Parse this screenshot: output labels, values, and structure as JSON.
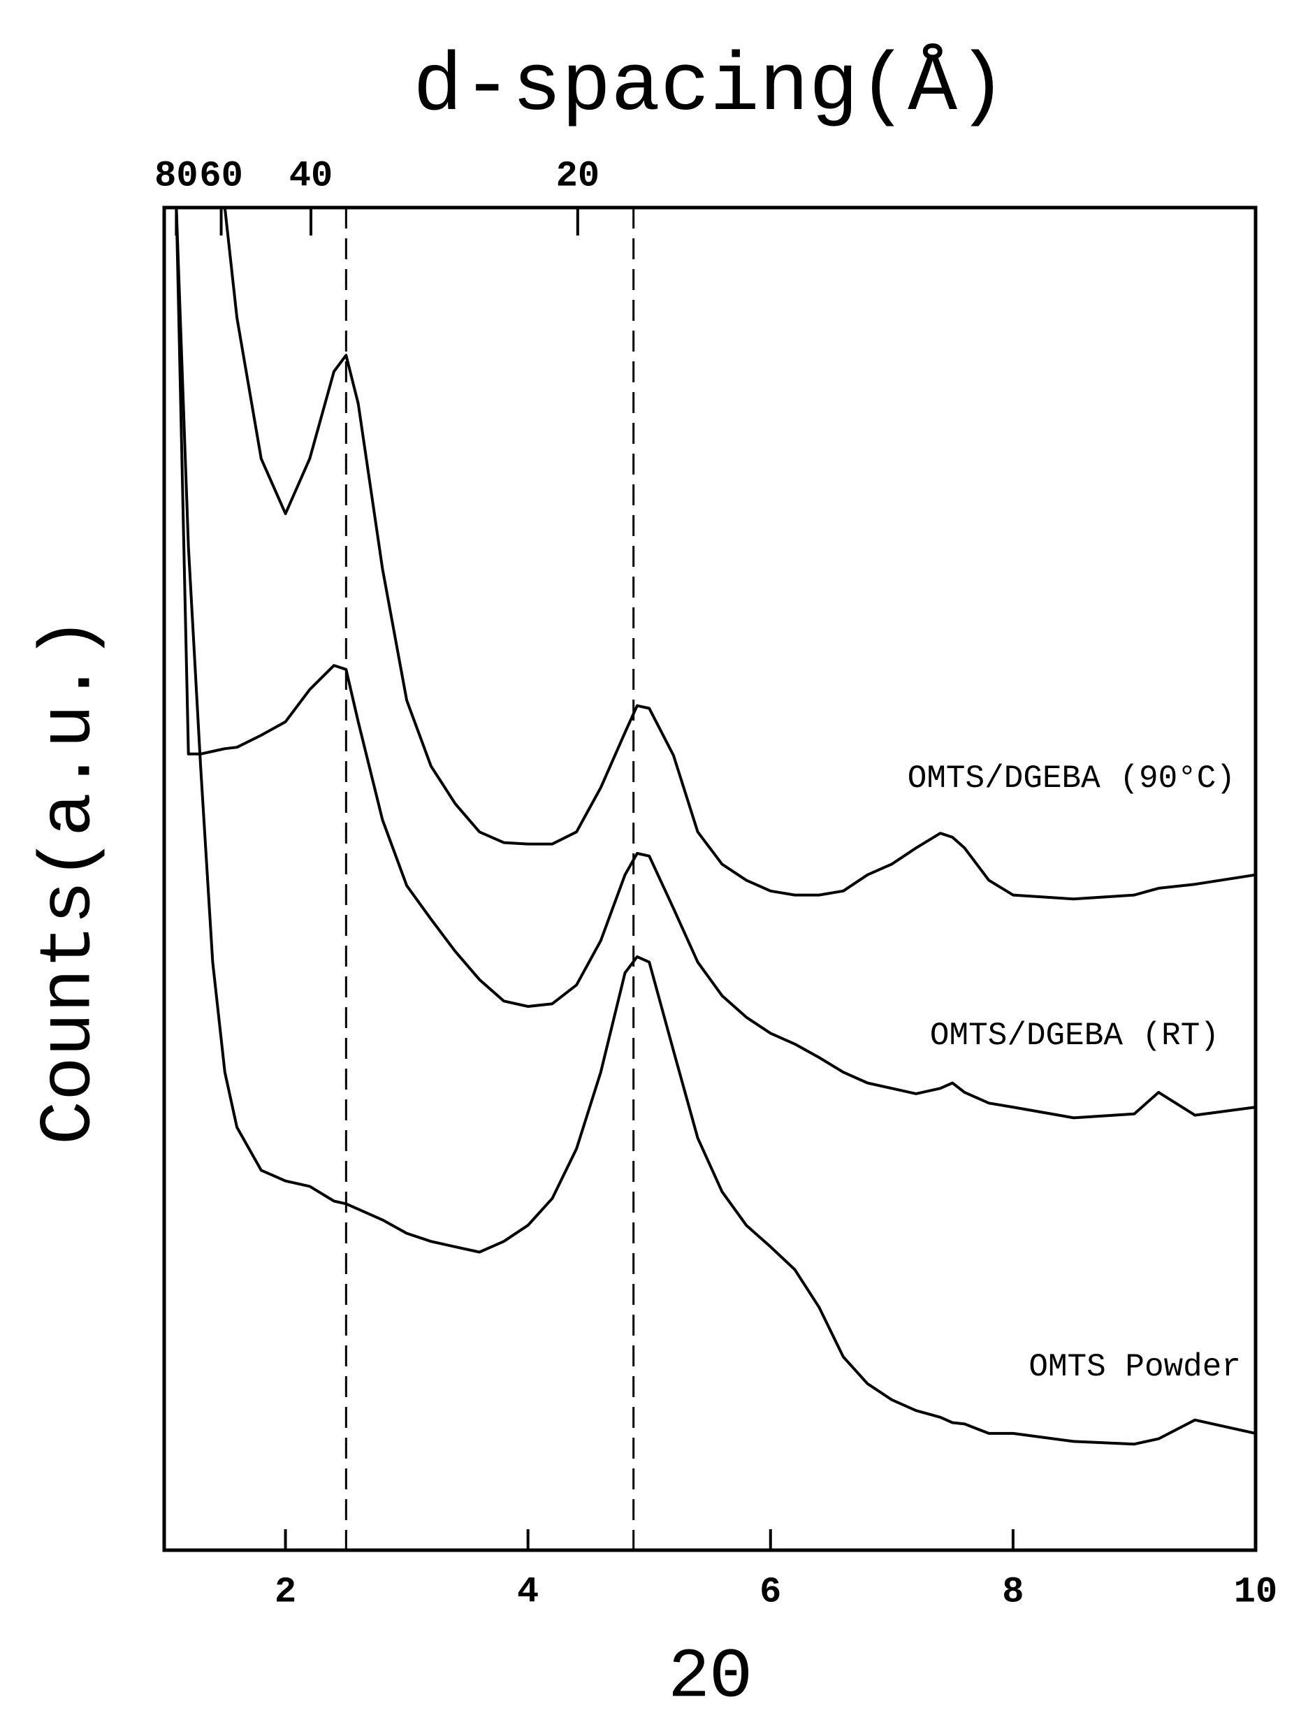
{
  "chart_data": {
    "type": "line",
    "title": "d-spacing(Å)",
    "xlabel": "2Θ",
    "ylabel": "Counts(a.u.)",
    "xlim": [
      1,
      10
    ],
    "ylim": [
      0,
      100
    ],
    "xticks": [
      2,
      4,
      6,
      8,
      10
    ],
    "x2ticks": [
      {
        "value": 1.1,
        "label": "80"
      },
      {
        "value": 1.47,
        "label": "60"
      },
      {
        "value": 2.21,
        "label": "40"
      },
      {
        "value": 4.41,
        "label": "20"
      }
    ],
    "vlines": [
      2.5,
      4.87
    ],
    "color": "#000000",
    "x": [
      1.1,
      1.2,
      1.3,
      1.4,
      1.5,
      1.6,
      1.8,
      2.0,
      2.2,
      2.4,
      2.5,
      2.6,
      2.8,
      3.0,
      3.2,
      3.4,
      3.6,
      3.8,
      4.0,
      4.2,
      4.4,
      4.6,
      4.8,
      4.9,
      5.0,
      5.2,
      5.4,
      5.6,
      5.8,
      6.0,
      6.2,
      6.4,
      6.6,
      6.8,
      7.0,
      7.2,
      7.4,
      7.5,
      7.6,
      7.8,
      8.0,
      8.5,
      9.0,
      9.2,
      9.5,
      10.0
    ],
    "series": [
      {
        "name": "OMTS/DGEBA (90°C)",
        "color": "#000000",
        "values": [
          null,
          null,
          null,
          null,
          100,
          91.8,
          81.3,
          77.2,
          81.3,
          87.8,
          89.0,
          85.4,
          73.1,
          63.3,
          58.4,
          55.6,
          53.5,
          52.7,
          52.6,
          52.6,
          53.5,
          56.8,
          60.9,
          62.9,
          62.7,
          59.2,
          53.5,
          51.1,
          49.9,
          49.1,
          48.8,
          48.8,
          49.1,
          50.3,
          51.1,
          52.3,
          53.4,
          53.1,
          52.3,
          49.9,
          48.8,
          48.5,
          48.8,
          49.3,
          49.6,
          50.3
        ]
      },
      {
        "name": "OMTS/DGEBA (RT)",
        "color": "#000000",
        "values": [
          100,
          59.3,
          59.3,
          59.5,
          59.7,
          59.8,
          60.7,
          61.7,
          64.1,
          65.9,
          65.6,
          61.7,
          54.4,
          49.5,
          47.0,
          44.6,
          42.5,
          40.9,
          40.5,
          40.7,
          42.1,
          45.4,
          50.3,
          51.9,
          51.7,
          47.8,
          43.8,
          41.3,
          39.7,
          38.5,
          37.7,
          36.7,
          35.6,
          34.8,
          34.4,
          34.0,
          34.4,
          34.8,
          34.1,
          33.3,
          33.0,
          32.2,
          32.5,
          34.1,
          32.4,
          33.0
        ]
      },
      {
        "name": "OMTS Powder",
        "color": "#000000",
        "values": [
          100,
          74.7,
          58.4,
          43.8,
          35.6,
          31.5,
          28.3,
          27.5,
          27.1,
          26.0,
          25.8,
          25.4,
          24.6,
          23.6,
          23.0,
          22.6,
          22.2,
          23.0,
          24.2,
          26.2,
          29.9,
          35.6,
          43.0,
          44.2,
          43.8,
          37.2,
          30.7,
          26.7,
          24.2,
          22.6,
          20.9,
          18.1,
          14.4,
          12.4,
          11.2,
          10.4,
          9.9,
          9.5,
          9.4,
          8.7,
          8.7,
          8.1,
          7.9,
          8.3,
          9.7,
          8.7
        ]
      }
    ]
  }
}
